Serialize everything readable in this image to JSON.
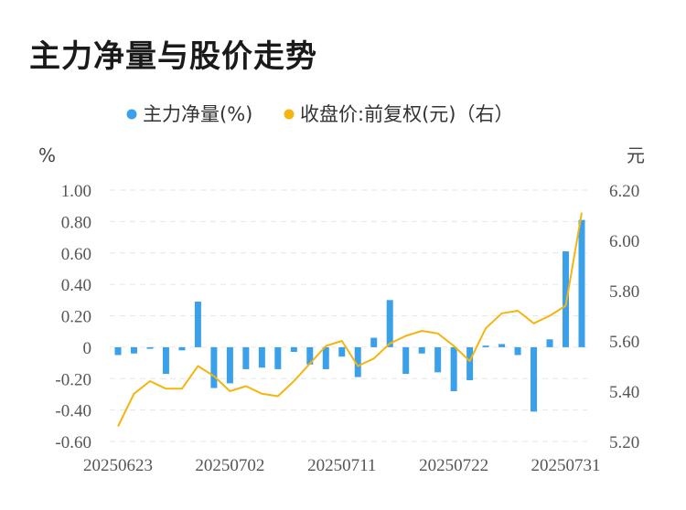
{
  "title": "主力净量与股价走势",
  "legend": {
    "bar_series": "主力净量(%)",
    "line_series": "收盘价:前复权(元)（右）"
  },
  "colors": {
    "bar": "#3aa0ea",
    "line": "#f5b50f",
    "grid": "#e6e6e6"
  },
  "chart_data": {
    "type": "bar+line",
    "title": "主力净量与股价走势",
    "left_axis": {
      "unit": "%",
      "range": [
        -0.6,
        1.0
      ],
      "ticks": [
        "1.00",
        "0.80",
        "0.60",
        "0.40",
        "0.20",
        "0",
        "-0.20",
        "-0.40",
        "-0.60"
      ]
    },
    "right_axis": {
      "unit": "元",
      "range": [
        5.2,
        6.2
      ],
      "ticks": [
        "6.20",
        "6.00",
        "5.80",
        "5.60",
        "5.40",
        "5.20"
      ]
    },
    "x_tick_labels": [
      "20250623",
      "20250702",
      "20250711",
      "20250722",
      "20250731"
    ],
    "x_tick_indices": [
      0,
      7,
      14,
      21,
      28
    ],
    "series": [
      {
        "name": "主力净量(%)",
        "axis": "left",
        "type": "bar",
        "values": [
          -0.05,
          -0.04,
          -0.01,
          -0.17,
          -0.02,
          0.29,
          -0.26,
          -0.23,
          -0.14,
          -0.13,
          -0.14,
          -0.03,
          -0.11,
          -0.14,
          -0.06,
          -0.19,
          0.06,
          0.3,
          -0.17,
          -0.04,
          -0.16,
          -0.28,
          -0.21,
          0.01,
          0.02,
          -0.05,
          -0.41,
          0.05,
          0.61,
          0.81
        ]
      },
      {
        "name": "收盘价:前复权(元)（右）",
        "axis": "right",
        "type": "line",
        "values": [
          5.26,
          5.39,
          5.44,
          5.41,
          5.41,
          5.5,
          5.46,
          5.4,
          5.42,
          5.39,
          5.38,
          5.44,
          5.51,
          5.58,
          5.6,
          5.5,
          5.53,
          5.59,
          5.62,
          5.64,
          5.63,
          5.58,
          5.52,
          5.65,
          5.71,
          5.72,
          5.67,
          5.7,
          5.74,
          6.11
        ]
      }
    ]
  }
}
